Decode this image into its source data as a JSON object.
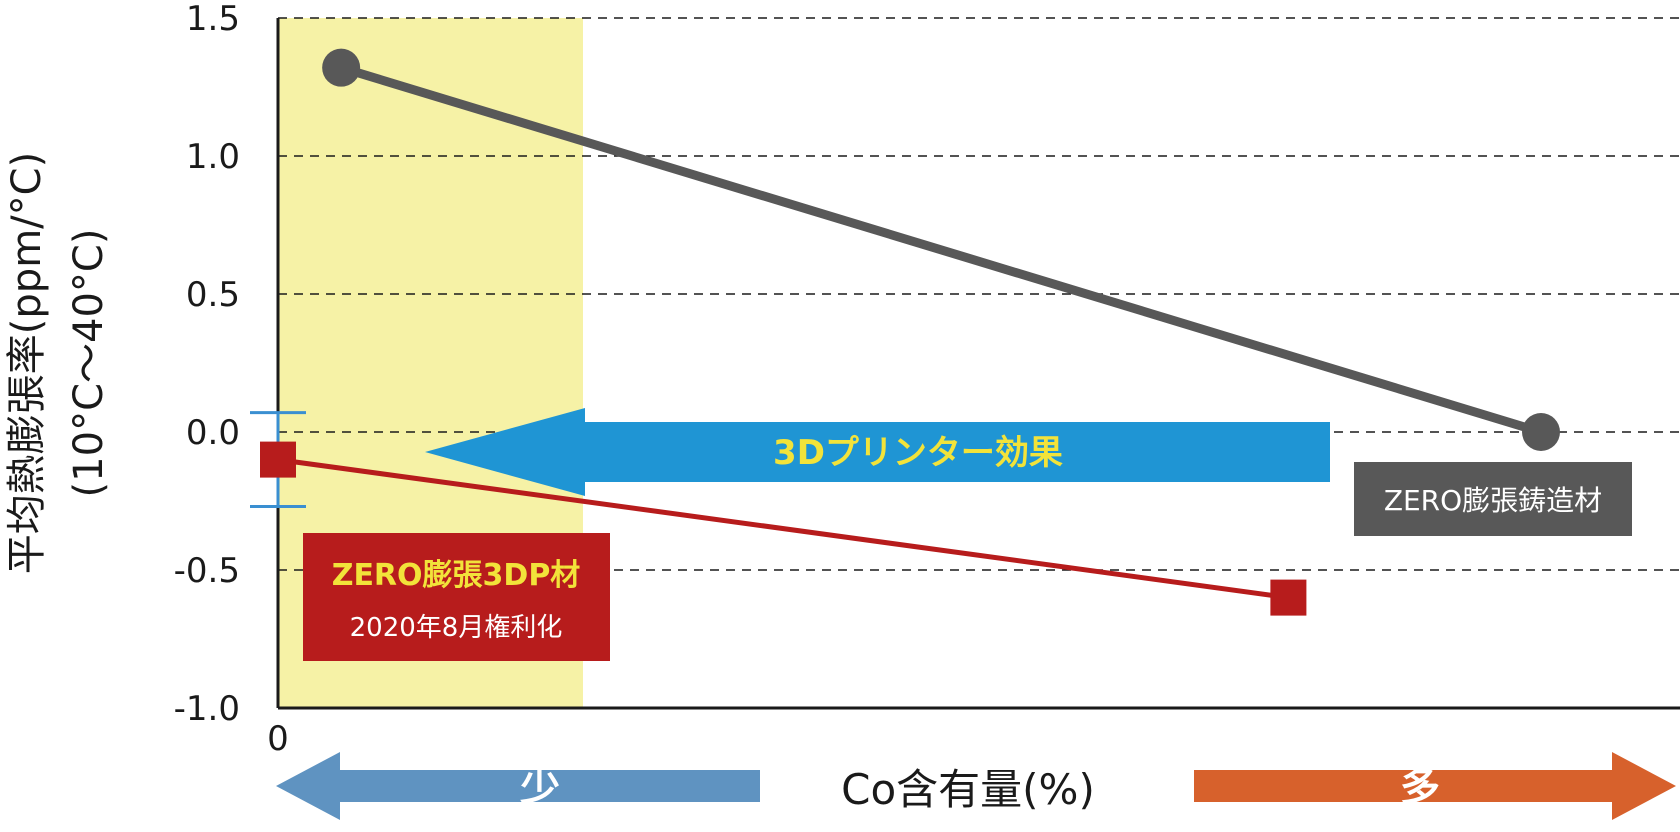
{
  "chart_data": {
    "type": "line",
    "xlabel": "Co含有量(%)",
    "ylabel_line1": "平均熱膨張率(ppm/°C)",
    "ylabel_line2": "(10°C〜40°C)",
    "ylim": [
      -1.0,
      1.5
    ],
    "yticks": [
      "1.5",
      "1.0",
      "0.5",
      "0.0",
      "-0.5",
      "-1.0"
    ],
    "ytick_values": [
      1.5,
      1.0,
      0.5,
      0.0,
      -0.5,
      -1.0
    ],
    "xtick_label": "0",
    "grid": "horizontal dashed",
    "series": [
      {
        "name": "ZERO膨張鋳造材",
        "color": "#585858",
        "marker": "circle",
        "points": [
          {
            "x": 0.05,
            "y": 1.32
          },
          {
            "x": 1.0,
            "y": 0.0
          }
        ]
      },
      {
        "name": "ZERO膨張3DP材",
        "color": "#b71c1c",
        "marker": "square",
        "points": [
          {
            "x": 0.0,
            "y": -0.1
          },
          {
            "x": 0.8,
            "y": -0.6
          }
        ],
        "error_bar": {
          "x": 0.0,
          "low": -0.27,
          "high": 0.07
        }
      }
    ],
    "highlight_region": {
      "x_from": 0.0,
      "x_to": 0.24,
      "color": "#f6f2a6"
    },
    "effect_arrow": {
      "label": "3Dプリンター効果",
      "color": "#1f95d4",
      "text_color": "#f2e33a"
    },
    "labels": {
      "casting": {
        "text": "ZERO膨張鋳造材",
        "bg": "#585858"
      },
      "dp": {
        "title": "ZERO膨張3DP材",
        "subtitle": "2020年8月権利化",
        "bg": "#b71c1c",
        "title_color": "#f2e33a"
      }
    },
    "bottom_arrows": {
      "less": {
        "text": "少",
        "color": "#5f93c1"
      },
      "more": {
        "text": "多",
        "color": "#d7612c"
      }
    }
  }
}
